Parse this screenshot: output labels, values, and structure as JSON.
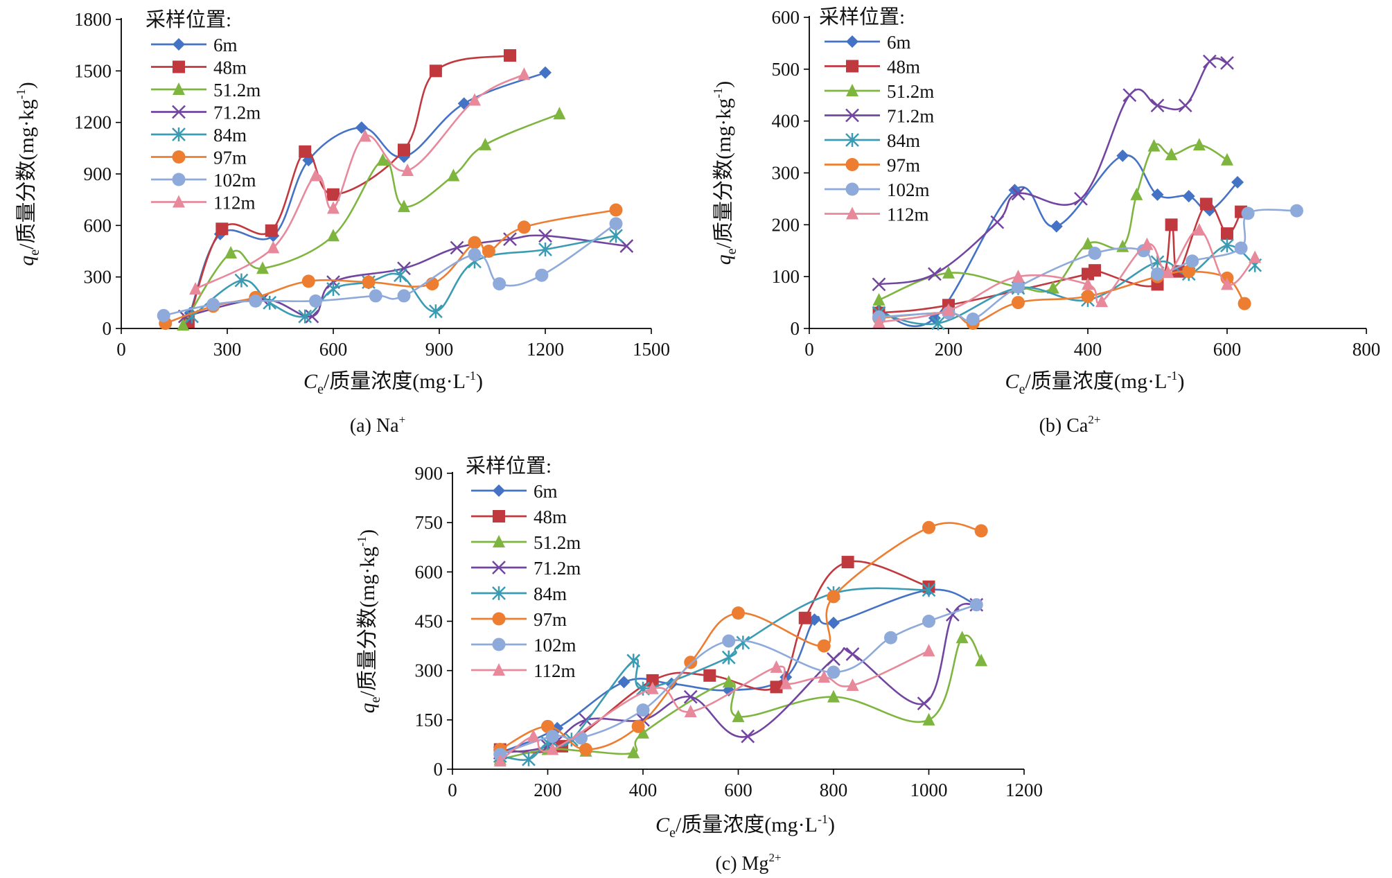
{
  "legend_title": "采样位置:",
  "ylabel": {
    "italic": "q",
    "sub": "e",
    "rest": "/质量分数",
    "unit": "(mg·kg",
    "unit_sup": "-1",
    "unit_end": ")"
  },
  "xlabel": {
    "italic": "C",
    "sub": "e",
    "rest": "/质量浓度",
    "unit": "(mg·L",
    "unit_sup": "-1",
    "unit_end": ")"
  },
  "series_styles": [
    {
      "name": "6m",
      "color": "#4472c4",
      "marker": "diamond"
    },
    {
      "name": "48m",
      "color": "#c0393f",
      "marker": "square"
    },
    {
      "name": "51.2m",
      "color": "#7eb53f",
      "marker": "triangle"
    },
    {
      "name": "71.2m",
      "color": "#7145a0",
      "marker": "x"
    },
    {
      "name": "84m",
      "color": "#3b9bb3",
      "marker": "star"
    },
    {
      "name": "97m",
      "color": "#ed7d31",
      "marker": "circle"
    },
    {
      "name": "102m",
      "color": "#8eaadb",
      "marker": "circle"
    },
    {
      "name": "112m",
      "color": "#e7899b",
      "marker": "triangle"
    }
  ],
  "chart_data": [
    {
      "id": "a",
      "type": "line",
      "caption": {
        "prefix": "(a) Na",
        "sup": "+"
      },
      "xlim": [
        0,
        1500
      ],
      "xticks": [
        0,
        300,
        600,
        900,
        1200,
        1500
      ],
      "ylim": [
        0,
        1800
      ],
      "yticks": [
        0,
        300,
        600,
        900,
        1200,
        1500,
        1800
      ],
      "series": [
        {
          "name": "6m",
          "points": [
            [
              195,
              90
            ],
            [
              280,
              550
            ],
            [
              430,
              540
            ],
            [
              530,
              980
            ],
            [
              680,
              1170
            ],
            [
              800,
              1000
            ],
            [
              970,
              1310
            ],
            [
              1200,
              1490
            ]
          ]
        },
        {
          "name": "48m",
          "points": [
            [
              190,
              40
            ],
            [
              285,
              580
            ],
            [
              425,
              570
            ],
            [
              520,
              1030
            ],
            [
              600,
              780
            ],
            [
              800,
              1040
            ],
            [
              890,
              1500
            ],
            [
              1100,
              1590
            ]
          ]
        },
        {
          "name": "51.2m",
          "points": [
            [
              175,
              20
            ],
            [
              310,
              440
            ],
            [
              400,
              350
            ],
            [
              600,
              540
            ],
            [
              740,
              980
            ],
            [
              800,
              710
            ],
            [
              940,
              890
            ],
            [
              1030,
              1070
            ],
            [
              1240,
              1250
            ]
          ]
        },
        {
          "name": "71.2m",
          "points": [
            [
              180,
              70
            ],
            [
              400,
              170
            ],
            [
              540,
              70
            ],
            [
              600,
              270
            ],
            [
              800,
              350
            ],
            [
              950,
              470
            ],
            [
              1100,
              520
            ],
            [
              1200,
              540
            ],
            [
              1430,
              480
            ]
          ]
        },
        {
          "name": "84m",
          "points": [
            [
              200,
              70
            ],
            [
              340,
              280
            ],
            [
              420,
              150
            ],
            [
              520,
              70
            ],
            [
              600,
              230
            ],
            [
              700,
              270
            ],
            [
              790,
              310
            ],
            [
              890,
              100
            ],
            [
              1000,
              390
            ],
            [
              1200,
              460
            ],
            [
              1400,
              540
            ]
          ]
        },
        {
          "name": "97m",
          "points": [
            [
              125,
              30
            ],
            [
              260,
              130
            ],
            [
              380,
              180
            ],
            [
              530,
              275
            ],
            [
              700,
              270
            ],
            [
              880,
              260
            ],
            [
              1000,
              500
            ],
            [
              1040,
              450
            ],
            [
              1140,
              590
            ],
            [
              1400,
              690
            ]
          ]
        },
        {
          "name": "102m",
          "points": [
            [
              120,
              75
            ],
            [
              260,
              140
            ],
            [
              380,
              160
            ],
            [
              550,
              160
            ],
            [
              720,
              190
            ],
            [
              800,
              190
            ],
            [
              1000,
              430
            ],
            [
              1070,
              260
            ],
            [
              1190,
              310
            ],
            [
              1400,
              610
            ]
          ]
        },
        {
          "name": "112m",
          "points": [
            [
              210,
              230
            ],
            [
              430,
              470
            ],
            [
              550,
              890
            ],
            [
              600,
              700
            ],
            [
              690,
              1120
            ],
            [
              810,
              920
            ],
            [
              1000,
              1330
            ],
            [
              1140,
              1480
            ]
          ]
        }
      ]
    },
    {
      "id": "b",
      "type": "line",
      "caption": {
        "prefix": "(b) Ca",
        "sup": "2+"
      },
      "xlim": [
        0,
        800
      ],
      "xticks": [
        0,
        200,
        400,
        600,
        800
      ],
      "ylim": [
        0,
        600
      ],
      "yticks": [
        0,
        100,
        200,
        300,
        400,
        500,
        600
      ],
      "series": [
        {
          "name": "6m",
          "points": [
            [
              100,
              35
            ],
            [
              180,
              20
            ],
            [
              295,
              267
            ],
            [
              355,
              197
            ],
            [
              450,
              333
            ],
            [
              500,
              258
            ],
            [
              545,
              255
            ],
            [
              575,
              228
            ],
            [
              615,
              282
            ]
          ]
        },
        {
          "name": "48m",
          "points": [
            [
              100,
              30
            ],
            [
              200,
              45
            ],
            [
              400,
              105
            ],
            [
              410,
              112
            ],
            [
              500,
              85
            ],
            [
              520,
              200
            ],
            [
              530,
              110
            ],
            [
              570,
              240
            ],
            [
              600,
              183
            ],
            [
              620,
              225
            ]
          ]
        },
        {
          "name": "51.2m",
          "points": [
            [
              100,
              55
            ],
            [
              200,
              107
            ],
            [
              300,
              80
            ],
            [
              350,
              78
            ],
            [
              400,
              163
            ],
            [
              450,
              158
            ],
            [
              470,
              258
            ],
            [
              495,
              352
            ],
            [
              520,
              335
            ],
            [
              560,
              354
            ],
            [
              600,
              325
            ]
          ]
        },
        {
          "name": "71.2m",
          "points": [
            [
              100,
              85
            ],
            [
              180,
              105
            ],
            [
              270,
              205
            ],
            [
              300,
              260
            ],
            [
              390,
              250
            ],
            [
              460,
              450
            ],
            [
              500,
              430
            ],
            [
              540,
              430
            ],
            [
              575,
              515
            ],
            [
              600,
              512
            ]
          ]
        },
        {
          "name": "84m",
          "points": [
            [
              100,
              30
            ],
            [
              185,
              10
            ],
            [
              300,
              78
            ],
            [
              400,
              55
            ],
            [
              500,
              128
            ],
            [
              545,
              105
            ],
            [
              600,
              160
            ],
            [
              640,
              122
            ]
          ]
        },
        {
          "name": "97m",
          "points": [
            [
              100,
              20
            ],
            [
              200,
              30
            ],
            [
              235,
              10
            ],
            [
              300,
              50
            ],
            [
              400,
              62
            ],
            [
              500,
              100
            ],
            [
              545,
              110
            ],
            [
              600,
              97
            ],
            [
              625,
              48
            ]
          ]
        },
        {
          "name": "102m",
          "points": [
            [
              100,
              22
            ],
            [
              200,
              30
            ],
            [
              235,
              18
            ],
            [
              300,
              80
            ],
            [
              410,
              145
            ],
            [
              480,
              150
            ],
            [
              500,
              105
            ],
            [
              550,
              130
            ],
            [
              620,
              155
            ],
            [
              630,
              222
            ],
            [
              700,
              227
            ]
          ]
        },
        {
          "name": "112m",
          "points": [
            [
              100,
              12
            ],
            [
              200,
              35
            ],
            [
              300,
              100
            ],
            [
              400,
              85
            ],
            [
              420,
              52
            ],
            [
              485,
              162
            ],
            [
              515,
              108
            ],
            [
              560,
              190
            ],
            [
              600,
              85
            ],
            [
              640,
              137
            ]
          ]
        }
      ]
    },
    {
      "id": "c",
      "type": "line",
      "caption": {
        "prefix": "(c) Mg",
        "sup": "2+"
      },
      "xlim": [
        0,
        1200
      ],
      "xticks": [
        0,
        200,
        400,
        600,
        800,
        1000,
        1200
      ],
      "ylim": [
        0,
        900
      ],
      "yticks": [
        0,
        150,
        300,
        450,
        600,
        750,
        900
      ],
      "series": [
        {
          "name": "6m",
          "points": [
            [
              100,
              50
            ],
            [
              220,
              125
            ],
            [
              360,
              265
            ],
            [
              460,
              260
            ],
            [
              580,
              240
            ],
            [
              700,
              280
            ],
            [
              760,
              455
            ],
            [
              800,
              445
            ],
            [
              1000,
              545
            ],
            [
              1100,
              500
            ]
          ]
        },
        {
          "name": "48m",
          "points": [
            [
              100,
              60
            ],
            [
              230,
              70
            ],
            [
              420,
              270
            ],
            [
              540,
              285
            ],
            [
              680,
              250
            ],
            [
              740,
              460
            ],
            [
              830,
              630
            ],
            [
              1000,
              555
            ]
          ]
        },
        {
          "name": "51.2m",
          "points": [
            [
              100,
              30
            ],
            [
              200,
              60
            ],
            [
              280,
              55
            ],
            [
              380,
              50
            ],
            [
              400,
              110
            ],
            [
              580,
              265
            ],
            [
              600,
              160
            ],
            [
              800,
              220
            ],
            [
              1000,
              150
            ],
            [
              1070,
              400
            ],
            [
              1110,
              330
            ]
          ]
        },
        {
          "name": "71.2m",
          "points": [
            [
              100,
              50
            ],
            [
              200,
              70
            ],
            [
              280,
              150
            ],
            [
              400,
              150
            ],
            [
              500,
              220
            ],
            [
              620,
              100
            ],
            [
              800,
              335
            ],
            [
              840,
              350
            ],
            [
              990,
              200
            ],
            [
              1050,
              470
            ],
            [
              1100,
              500
            ]
          ]
        },
        {
          "name": "84m",
          "points": [
            [
              100,
              40
            ],
            [
              160,
              30
            ],
            [
              200,
              80
            ],
            [
              250,
              90
            ],
            [
              380,
              330
            ],
            [
              400,
              245
            ],
            [
              580,
              340
            ],
            [
              610,
              385
            ],
            [
              800,
              535
            ],
            [
              1000,
              545
            ]
          ]
        },
        {
          "name": "97m",
          "points": [
            [
              100,
              60
            ],
            [
              200,
              130
            ],
            [
              280,
              60
            ],
            [
              390,
              130
            ],
            [
              500,
              325
            ],
            [
              600,
              475
            ],
            [
              780,
              375
            ],
            [
              800,
              525
            ],
            [
              1000,
              735
            ],
            [
              1110,
              725
            ]
          ]
        },
        {
          "name": "102m",
          "points": [
            [
              100,
              45
            ],
            [
              210,
              100
            ],
            [
              270,
              95
            ],
            [
              400,
              180
            ],
            [
              580,
              390
            ],
            [
              800,
              295
            ],
            [
              920,
              400
            ],
            [
              1000,
              450
            ],
            [
              1100,
              500
            ]
          ]
        },
        {
          "name": "112m",
          "points": [
            [
              100,
              25
            ],
            [
              170,
              100
            ],
            [
              210,
              60
            ],
            [
              420,
              245
            ],
            [
              500,
              175
            ],
            [
              680,
              310
            ],
            [
              700,
              260
            ],
            [
              780,
              280
            ],
            [
              840,
              255
            ],
            [
              1000,
              360
            ]
          ]
        }
      ]
    }
  ]
}
